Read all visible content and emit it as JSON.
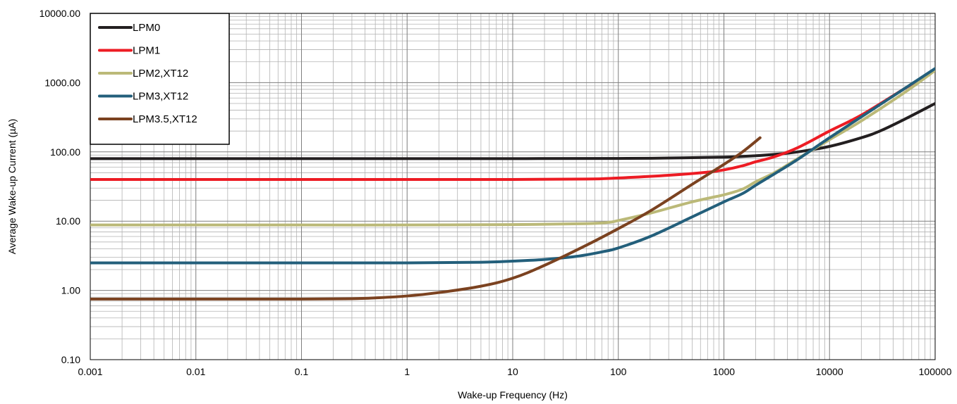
{
  "chart_data": {
    "type": "line",
    "title": "",
    "xlabel": "Wake-up Frequency (Hz)",
    "ylabel": "Average Wake-up Current (µA)",
    "x_scale": "log",
    "y_scale": "log",
    "xlim": [
      0.001,
      100000
    ],
    "ylim": [
      0.1,
      10000
    ],
    "grid": true,
    "legend_position": "top-left",
    "x_ticks": [
      {
        "value": 0.001,
        "label": "0.001"
      },
      {
        "value": 0.01,
        "label": "0.01"
      },
      {
        "value": 0.1,
        "label": "0.1"
      },
      {
        "value": 1,
        "label": "1"
      },
      {
        "value": 10,
        "label": "10"
      },
      {
        "value": 100,
        "label": "100"
      },
      {
        "value": 1000,
        "label": "1000"
      },
      {
        "value": 10000,
        "label": "10000"
      },
      {
        "value": 100000,
        "label": "100000"
      }
    ],
    "y_ticks": [
      {
        "value": 0.1,
        "label": "0.10"
      },
      {
        "value": 1,
        "label": "1.00"
      },
      {
        "value": 10,
        "label": "10.00"
      },
      {
        "value": 100,
        "label": "100.00"
      },
      {
        "value": 1000,
        "label": "1000.00"
      },
      {
        "value": 10000,
        "label": "10000.00"
      }
    ],
    "series": [
      {
        "name": "LPM0",
        "color": "#231f20",
        "points": [
          [
            0.001,
            80
          ],
          [
            0.01,
            80
          ],
          [
            0.1,
            80
          ],
          [
            1,
            80
          ],
          [
            10,
            80
          ],
          [
            100,
            80.5
          ],
          [
            300,
            81.5
          ],
          [
            1000,
            84
          ],
          [
            2000,
            88
          ],
          [
            3000,
            92
          ],
          [
            5000,
            100
          ],
          [
            10000,
            120
          ],
          [
            20000,
            160
          ],
          [
            30000,
            200
          ],
          [
            50000,
            290
          ],
          [
            100000,
            500
          ]
        ]
      },
      {
        "name": "LPM1",
        "color": "#ed1c24",
        "points": [
          [
            0.001,
            40
          ],
          [
            0.01,
            40
          ],
          [
            0.1,
            40
          ],
          [
            1,
            40
          ],
          [
            10,
            40
          ],
          [
            50,
            40.5
          ],
          [
            100,
            42
          ],
          [
            300,
            46
          ],
          [
            700,
            51
          ],
          [
            1000,
            55
          ],
          [
            1500,
            63
          ],
          [
            2000,
            72
          ],
          [
            3000,
            85
          ],
          [
            5000,
            115
          ],
          [
            10000,
            200
          ],
          [
            20000,
            340
          ],
          [
            50000,
            800
          ],
          [
            100000,
            1500
          ]
        ]
      },
      {
        "name": "LPM2,XT12",
        "color": "#bbb978",
        "points": [
          [
            0.001,
            8.8
          ],
          [
            0.01,
            8.8
          ],
          [
            0.1,
            8.8
          ],
          [
            1,
            8.8
          ],
          [
            10,
            8.9
          ],
          [
            50,
            9.2
          ],
          [
            80,
            9.6
          ],
          [
            100,
            10.2
          ],
          [
            200,
            13
          ],
          [
            500,
            19
          ],
          [
            1000,
            24
          ],
          [
            1500,
            29
          ],
          [
            2000,
            37
          ],
          [
            3000,
            50
          ],
          [
            5000,
            80
          ],
          [
            10000,
            150
          ],
          [
            20000,
            280
          ],
          [
            50000,
            700
          ],
          [
            100000,
            1500
          ]
        ]
      },
      {
        "name": "LPM3,XT12",
        "color": "#235f7b",
        "points": [
          [
            0.001,
            2.5
          ],
          [
            0.01,
            2.5
          ],
          [
            0.1,
            2.5
          ],
          [
            1,
            2.5
          ],
          [
            5,
            2.55
          ],
          [
            10,
            2.65
          ],
          [
            20,
            2.8
          ],
          [
            40,
            3.1
          ],
          [
            70,
            3.6
          ],
          [
            100,
            4.1
          ],
          [
            200,
            6
          ],
          [
            500,
            11.5
          ],
          [
            1000,
            19
          ],
          [
            1500,
            25
          ],
          [
            2000,
            33
          ],
          [
            3000,
            48
          ],
          [
            5000,
            78
          ],
          [
            10000,
            160
          ],
          [
            20000,
            320
          ],
          [
            50000,
            800
          ],
          [
            100000,
            1600
          ]
        ]
      },
      {
        "name": "LPM3.5,XT12",
        "color": "#7b4220",
        "points": [
          [
            0.001,
            0.75
          ],
          [
            0.01,
            0.75
          ],
          [
            0.1,
            0.75
          ],
          [
            0.3,
            0.76
          ],
          [
            0.5,
            0.78
          ],
          [
            1,
            0.83
          ],
          [
            2,
            0.93
          ],
          [
            5,
            1.15
          ],
          [
            10,
            1.5
          ],
          [
            20,
            2.3
          ],
          [
            50,
            4.5
          ],
          [
            100,
            7.8
          ],
          [
            200,
            14
          ],
          [
            500,
            34
          ],
          [
            1000,
            66
          ],
          [
            1500,
            100
          ],
          [
            2200,
            160
          ]
        ]
      }
    ]
  }
}
